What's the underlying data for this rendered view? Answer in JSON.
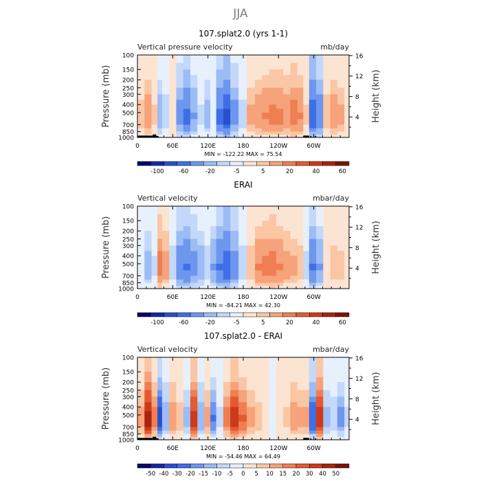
{
  "figure": {
    "title": "JJA"
  },
  "chart_data": [
    {
      "type": "heatmap",
      "title": "107.splat2.0 (yrs 1-1)",
      "left_label": "Vertical pressure velocity",
      "right_label": "mb/day",
      "xlabel": "",
      "ylabel": "Pressure (mb)",
      "y2label": "Height (km)",
      "x_ticks": [
        "0",
        "60E",
        "120E",
        "180",
        "120W",
        "60W"
      ],
      "x_range_deg": [
        0,
        360
      ],
      "y_ticks": [
        100,
        150,
        200,
        250,
        300,
        400,
        500,
        700,
        850,
        1000
      ],
      "y_range": [
        100,
        1000
      ],
      "y_scale": "log",
      "y2_ticks": [
        4,
        8,
        12,
        16
      ],
      "stats": "MIN = -122.22   MAX =  75.54",
      "colorbar": {
        "labels": [
          "-100",
          "-60",
          "-20",
          "-5",
          "5",
          "20",
          "40",
          "60"
        ],
        "colors": [
          "#08086b",
          "#1528a6",
          "#2a4fcd",
          "#3f6fe6",
          "#6d96ee",
          "#9bbcf4",
          "#c3d8fa",
          "#e7f0fd",
          "#fce4d2",
          "#fbc6a4",
          "#f6a27a",
          "#ef7e52",
          "#e35a2f",
          "#cc3a18",
          "#a8240e",
          "#7c1406"
        ]
      },
      "columns": [
        {
          "lon": 0,
          "w": 5
        },
        {
          "lon": 12,
          "w": 12
        },
        {
          "lon": 24,
          "w": 4
        },
        {
          "lon": 34,
          "w": -12
        },
        {
          "lon": 42,
          "w": -6
        },
        {
          "lon": 54,
          "w": 3
        },
        {
          "lon": 66,
          "w": -18
        },
        {
          "lon": 78,
          "w": -30
        },
        {
          "lon": 90,
          "w": -14
        },
        {
          "lon": 102,
          "w": -4
        },
        {
          "lon": 114,
          "w": -10
        },
        {
          "lon": 124,
          "w": -3
        },
        {
          "lon": 134,
          "w": -30
        },
        {
          "lon": 146,
          "w": -45
        },
        {
          "lon": 158,
          "w": -18
        },
        {
          "lon": 172,
          "w": -5
        },
        {
          "lon": 186,
          "w": 8
        },
        {
          "lon": 200,
          "w": 12
        },
        {
          "lon": 212,
          "w": 14
        },
        {
          "lon": 224,
          "w": 16
        },
        {
          "lon": 236,
          "w": 15
        },
        {
          "lon": 248,
          "w": 13
        },
        {
          "lon": 260,
          "w": 18
        },
        {
          "lon": 272,
          "w": 14
        },
        {
          "lon": 282,
          "w": 4
        },
        {
          "lon": 292,
          "w": -40
        },
        {
          "lon": 304,
          "w": -22
        },
        {
          "lon": 316,
          "w": 6
        },
        {
          "lon": 328,
          "w": 12
        },
        {
          "lon": 340,
          "w": 8
        },
        {
          "lon": 352,
          "w": 3
        }
      ],
      "topography": [
        {
          "lon0": 0,
          "lon1": 26,
          "p": 950
        },
        {
          "lon0": 26,
          "lon1": 32,
          "p": 920
        },
        {
          "lon0": 32,
          "lon1": 36,
          "p": 960
        },
        {
          "lon0": 282,
          "lon1": 292,
          "p": 950
        },
        {
          "lon0": 294,
          "lon1": 296,
          "p": 960
        },
        {
          "lon0": 302,
          "lon1": 304,
          "p": 960
        }
      ]
    },
    {
      "type": "heatmap",
      "title": "ERAI",
      "left_label": "Vertical velocity",
      "right_label": "mbar/day",
      "xlabel": "",
      "ylabel": "Pressure (mb)",
      "y2label": "Height (km)",
      "x_ticks": [
        "0",
        "60E",
        "120E",
        "180",
        "120W",
        "60W"
      ],
      "x_range_deg": [
        0,
        360
      ],
      "y_ticks": [
        100,
        150,
        200,
        250,
        300,
        400,
        500,
        700,
        850,
        1000
      ],
      "y_range": [
        100,
        1000
      ],
      "y_scale": "log",
      "y2_ticks": [
        4,
        8,
        12,
        16
      ],
      "stats": "MIN = -84.21   MAX =  42.30",
      "colorbar": {
        "labels": [
          "-100",
          "-60",
          "-20",
          "-5",
          "5",
          "20",
          "40",
          "60"
        ],
        "colors": [
          "#08086b",
          "#1528a6",
          "#2a4fcd",
          "#3f6fe6",
          "#6d96ee",
          "#9bbcf4",
          "#c3d8fa",
          "#e7f0fd",
          "#fce4d2",
          "#fbc6a4",
          "#f6a27a",
          "#ef7e52",
          "#e35a2f",
          "#cc3a18",
          "#a8240e",
          "#7c1406"
        ]
      },
      "columns": [
        {
          "lon": 0,
          "w": -3
        },
        {
          "lon": 12,
          "w": -10
        },
        {
          "lon": 24,
          "w": -4
        },
        {
          "lon": 34,
          "w": 18
        },
        {
          "lon": 42,
          "w": 10
        },
        {
          "lon": 54,
          "w": -6
        },
        {
          "lon": 66,
          "w": -22
        },
        {
          "lon": 78,
          "w": -28
        },
        {
          "lon": 90,
          "w": -18
        },
        {
          "lon": 102,
          "w": -12
        },
        {
          "lon": 114,
          "w": -6
        },
        {
          "lon": 124,
          "w": -14
        },
        {
          "lon": 134,
          "w": -28
        },
        {
          "lon": 146,
          "w": -40
        },
        {
          "lon": 158,
          "w": -20
        },
        {
          "lon": 172,
          "w": -6
        },
        {
          "lon": 186,
          "w": 6
        },
        {
          "lon": 200,
          "w": 14
        },
        {
          "lon": 212,
          "w": 16
        },
        {
          "lon": 224,
          "w": 18
        },
        {
          "lon": 236,
          "w": 14
        },
        {
          "lon": 248,
          "w": 10
        },
        {
          "lon": 260,
          "w": 8
        },
        {
          "lon": 272,
          "w": 6
        },
        {
          "lon": 282,
          "w": -5
        },
        {
          "lon": 292,
          "w": -28
        },
        {
          "lon": 304,
          "w": -14
        },
        {
          "lon": 316,
          "w": 3
        },
        {
          "lon": 328,
          "w": 6
        },
        {
          "lon": 340,
          "w": 5
        },
        {
          "lon": 352,
          "w": 2
        }
      ],
      "topography": []
    },
    {
      "type": "heatmap",
      "title": "107.splat2.0 - ERAI",
      "left_label": "Vertical velocity",
      "right_label": "mbar/day",
      "xlabel": "",
      "ylabel": "Pressure (mb)",
      "y2label": "Height (km)",
      "x_ticks": [
        "0",
        "60E",
        "120E",
        "180",
        "120W",
        "60W"
      ],
      "x_range_deg": [
        0,
        360
      ],
      "y_ticks": [
        100,
        150,
        200,
        250,
        300,
        400,
        500,
        700,
        850,
        1000
      ],
      "y_range": [
        100,
        1000
      ],
      "y_scale": "log",
      "y2_ticks": [
        4,
        8,
        12,
        16
      ],
      "stats": "MIN = -54.46   MAX =  64.49",
      "colorbar": {
        "labels": [
          "-50",
          "-40",
          "-30",
          "-20",
          "-15",
          "-10",
          "-5",
          "0",
          "5",
          "10",
          "15",
          "20",
          "30",
          "40",
          "50"
        ],
        "colors": [
          "#08086b",
          "#1528a6",
          "#2a4fcd",
          "#3f6fe6",
          "#6d96ee",
          "#9bbcf4",
          "#c3d8fa",
          "#e7f0fd",
          "#fce4d2",
          "#fbc6a4",
          "#f6a27a",
          "#ef7e52",
          "#e35a2f",
          "#cc3a18",
          "#a8240e",
          "#7c1406"
        ]
      },
      "columns": [
        {
          "lon": 0,
          "w": 8
        },
        {
          "lon": 12,
          "w": 30
        },
        {
          "lon": 24,
          "w": 12
        },
        {
          "lon": 34,
          "w": -25
        },
        {
          "lon": 42,
          "w": -10
        },
        {
          "lon": 54,
          "w": 10
        },
        {
          "lon": 66,
          "w": 5
        },
        {
          "lon": 78,
          "w": -8
        },
        {
          "lon": 90,
          "w": 22
        },
        {
          "lon": 102,
          "w": -10
        },
        {
          "lon": 114,
          "w": 8
        },
        {
          "lon": 124,
          "w": -14
        },
        {
          "lon": 134,
          "w": -4
        },
        {
          "lon": 146,
          "w": 12
        },
        {
          "lon": 158,
          "w": 24
        },
        {
          "lon": 172,
          "w": 14
        },
        {
          "lon": 186,
          "w": 8
        },
        {
          "lon": 200,
          "w": 5
        },
        {
          "lon": 212,
          "w": 3
        },
        {
          "lon": 224,
          "w": -3
        },
        {
          "lon": 236,
          "w": 2
        },
        {
          "lon": 248,
          "w": 4
        },
        {
          "lon": 260,
          "w": 10
        },
        {
          "lon": 272,
          "w": 8
        },
        {
          "lon": 282,
          "w": 8
        },
        {
          "lon": 292,
          "w": -20
        },
        {
          "lon": 304,
          "w": 25
        },
        {
          "lon": 316,
          "w": -8
        },
        {
          "lon": 328,
          "w": -6
        },
        {
          "lon": 340,
          "w": -12
        },
        {
          "lon": 352,
          "w": -4
        }
      ],
      "topography": [
        {
          "lon0": 0,
          "lon1": 26,
          "p": 950
        },
        {
          "lon0": 26,
          "lon1": 32,
          "p": 920
        },
        {
          "lon0": 32,
          "lon1": 36,
          "p": 960
        },
        {
          "lon0": 282,
          "lon1": 292,
          "p": 950
        },
        {
          "lon0": 294,
          "lon1": 296,
          "p": 960
        },
        {
          "lon0": 302,
          "lon1": 304,
          "p": 960
        }
      ]
    }
  ]
}
